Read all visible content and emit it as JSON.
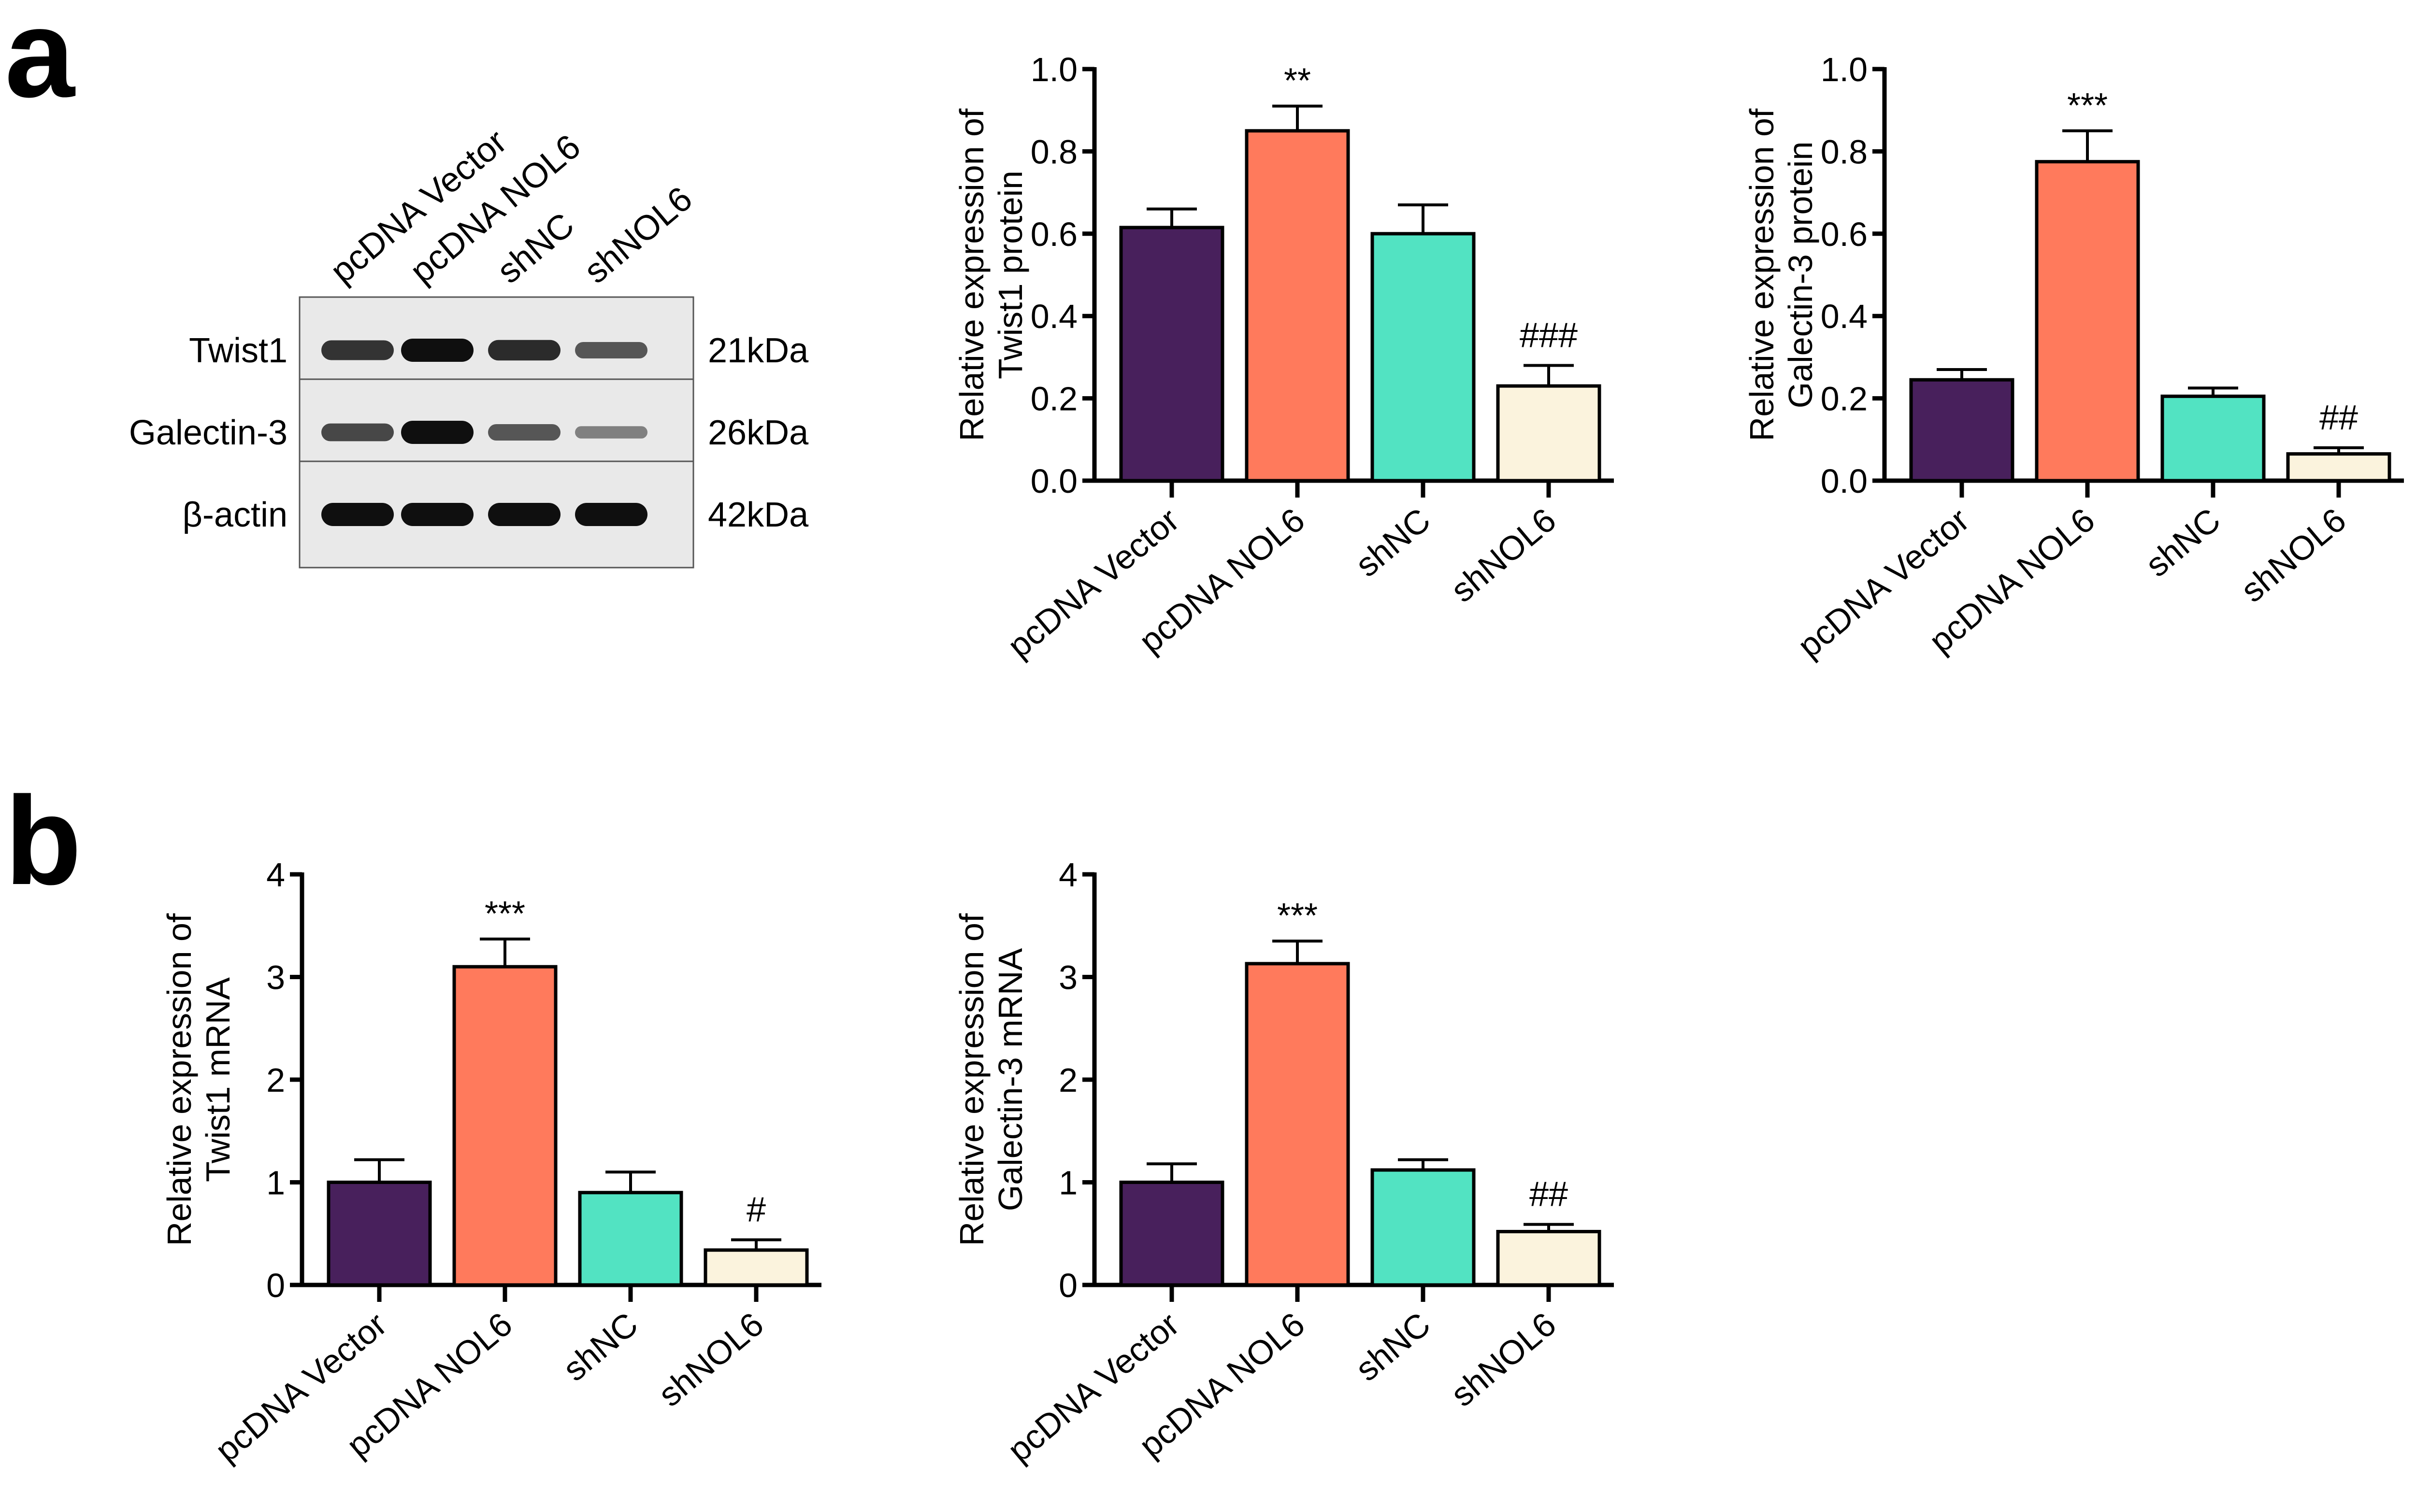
{
  "panels": {
    "a": "a",
    "b": "b"
  },
  "western_blot": {
    "lanes": [
      "pcDNA Vector",
      "pcDNA NOL6",
      "shNC",
      "shNOL6"
    ],
    "rows": [
      {
        "protein": "Twist1",
        "size": "21kDa",
        "intensity": [
          0.75,
          1.0,
          0.8,
          0.5
        ]
      },
      {
        "protein": "Galectin-3",
        "size": "26kDa",
        "intensity": [
          0.6,
          1.0,
          0.5,
          0.2
        ]
      },
      {
        "protein": "β-actin",
        "size": "42kDa",
        "intensity": [
          1.0,
          1.0,
          1.0,
          1.0
        ]
      }
    ]
  },
  "colors": [
    "#48205c",
    "#ff7a5c",
    "#52e3c2",
    "#fbf3dd"
  ],
  "chart_data": [
    {
      "type": "bar",
      "id": "twist1_protein",
      "panel": "a",
      "title": "",
      "xlabel": "",
      "ylabel": [
        "Relative expression of",
        "Twist1 protein"
      ],
      "categories": [
        "pcDNA Vector",
        "pcDNA NOL6",
        "shNC",
        "shNOL6"
      ],
      "values": [
        0.615,
        0.85,
        0.6,
        0.23
      ],
      "error_upper": [
        0.66,
        0.91,
        0.67,
        0.28
      ],
      "annotations": [
        "",
        "**",
        "",
        "###"
      ],
      "ylim": [
        0,
        1.0
      ],
      "yticks": [
        "0.0",
        "0.2",
        "0.4",
        "0.6",
        "0.8",
        "1.0"
      ],
      "ytick_values": [
        0,
        0.2,
        0.4,
        0.6,
        0.8,
        1.0
      ],
      "grid": false,
      "legend": "none"
    },
    {
      "type": "bar",
      "id": "galectin3_protein",
      "panel": "a",
      "title": "",
      "xlabel": "",
      "ylabel": [
        "Relative expression of",
        "Galectin-3 protein"
      ],
      "categories": [
        "pcDNA Vector",
        "pcDNA NOL6",
        "shNC",
        "shNOL6"
      ],
      "values": [
        0.245,
        0.775,
        0.205,
        0.065
      ],
      "error_upper": [
        0.27,
        0.85,
        0.225,
        0.08
      ],
      "annotations": [
        "",
        "***",
        "",
        "##"
      ],
      "ylim": [
        0,
        1.0
      ],
      "yticks": [
        "0.0",
        "0.2",
        "0.4",
        "0.6",
        "0.8",
        "1.0"
      ],
      "ytick_values": [
        0,
        0.2,
        0.4,
        0.6,
        0.8,
        1.0
      ],
      "grid": false,
      "legend": "none"
    },
    {
      "type": "bar",
      "id": "twist1_mrna",
      "panel": "b",
      "title": "",
      "xlabel": "",
      "ylabel": [
        "Relative expression of",
        "Twist1 mRNA"
      ],
      "categories": [
        "pcDNA Vector",
        "pcDNA NOL6",
        "shNC",
        "shNOL6"
      ],
      "values": [
        1.0,
        3.1,
        0.9,
        0.34
      ],
      "error_upper": [
        1.22,
        3.37,
        1.1,
        0.44
      ],
      "annotations": [
        "",
        "***",
        "",
        "#"
      ],
      "ylim": [
        0,
        4
      ],
      "yticks": [
        "0",
        "1",
        "2",
        "3",
        "4"
      ],
      "ytick_values": [
        0,
        1,
        2,
        3,
        4
      ],
      "grid": false,
      "legend": "none"
    },
    {
      "type": "bar",
      "id": "galectin3_mrna",
      "panel": "b",
      "title": "",
      "xlabel": "",
      "ylabel": [
        "Relative expression of",
        "Galectin-3 mRNA"
      ],
      "categories": [
        "pcDNA Vector",
        "pcDNA NOL6",
        "shNC",
        "shNOL6"
      ],
      "values": [
        1.0,
        3.13,
        1.12,
        0.52
      ],
      "error_upper": [
        1.18,
        3.35,
        1.22,
        0.59
      ],
      "annotations": [
        "",
        "***",
        "",
        "##"
      ],
      "ylim": [
        0,
        4
      ],
      "yticks": [
        "0",
        "1",
        "2",
        "3",
        "4"
      ],
      "ytick_values": [
        0,
        1,
        2,
        3,
        4
      ],
      "grid": false,
      "legend": "none"
    }
  ]
}
